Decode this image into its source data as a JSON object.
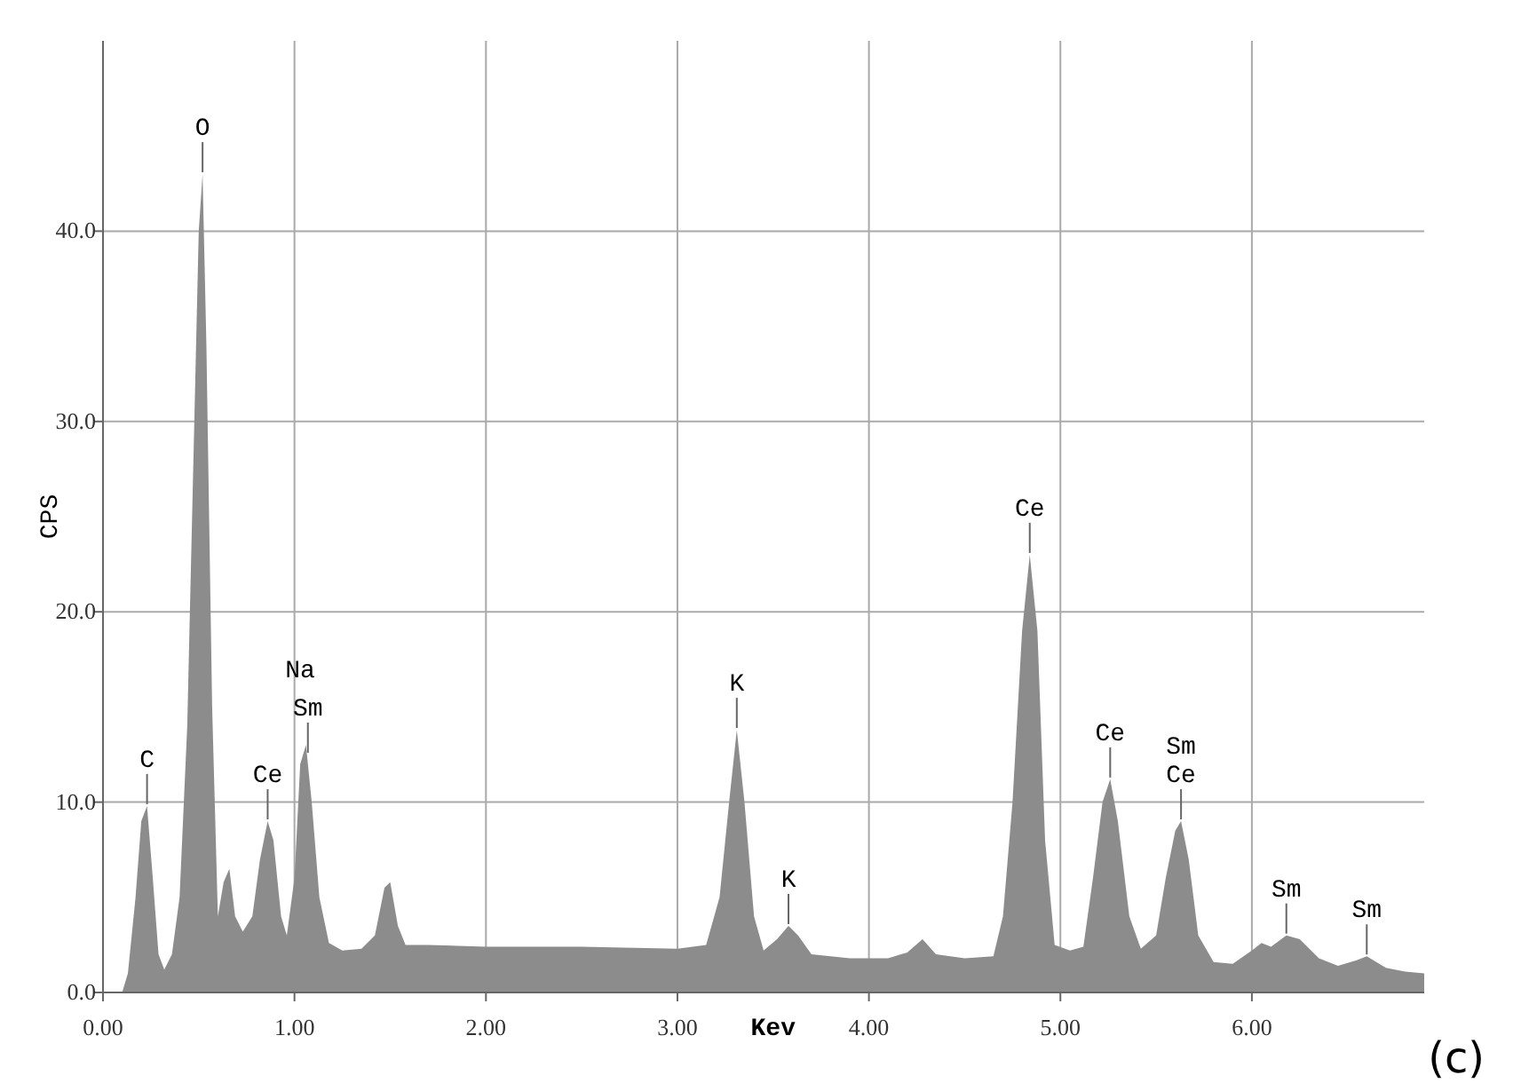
{
  "chart_data": {
    "type": "area",
    "xlabel": "Kev",
    "ylabel": "CPS",
    "color": "#8c8c8c",
    "grid": true,
    "xlim": [
      0,
      6.9
    ],
    "ylim": [
      0,
      50
    ],
    "xticks": [
      {
        "value": 0,
        "label": "0.00"
      },
      {
        "value": 1,
        "label": "1.00"
      },
      {
        "value": 2,
        "label": "2.00"
      },
      {
        "value": 3,
        "label": "3.00"
      },
      {
        "value": 4,
        "label": "4.00"
      },
      {
        "value": 5,
        "label": "5.00"
      },
      {
        "value": 6,
        "label": "6.00"
      }
    ],
    "yticks": [
      {
        "value": 0,
        "label": "0.0"
      },
      {
        "value": 10,
        "label": "10.0"
      },
      {
        "value": 20,
        "label": "20.0"
      },
      {
        "value": 30,
        "label": "30.0"
      },
      {
        "value": 40,
        "label": "40.0"
      }
    ],
    "x": [
      0.1,
      0.13,
      0.17,
      0.2,
      0.23,
      0.26,
      0.29,
      0.32,
      0.36,
      0.4,
      0.44,
      0.47,
      0.5,
      0.52,
      0.54,
      0.57,
      0.6,
      0.63,
      0.66,
      0.69,
      0.73,
      0.78,
      0.82,
      0.86,
      0.89,
      0.93,
      0.96,
      1.0,
      1.03,
      1.06,
      1.09,
      1.13,
      1.18,
      1.25,
      1.35,
      1.42,
      1.47,
      1.5,
      1.54,
      1.58,
      1.7,
      2.0,
      2.5,
      3.0,
      3.15,
      3.22,
      3.27,
      3.31,
      3.35,
      3.4,
      3.45,
      3.52,
      3.58,
      3.63,
      3.7,
      3.9,
      4.1,
      4.2,
      4.28,
      4.35,
      4.5,
      4.65,
      4.7,
      4.75,
      4.8,
      4.84,
      4.88,
      4.92,
      4.97,
      5.05,
      5.12,
      5.17,
      5.22,
      5.26,
      5.3,
      5.36,
      5.42,
      5.5,
      5.55,
      5.6,
      5.63,
      5.67,
      5.72,
      5.8,
      5.9,
      6.0,
      6.05,
      6.1,
      6.18,
      6.25,
      6.35,
      6.45,
      6.55,
      6.6,
      6.7,
      6.8,
      6.9
    ],
    "values": [
      0,
      1,
      5,
      9,
      9.8,
      6,
      2,
      1.2,
      2,
      5,
      14,
      27,
      40,
      43,
      34,
      15,
      4,
      5.8,
      6.5,
      4,
      3.2,
      4,
      7,
      9,
      8,
      4,
      3,
      6,
      12,
      13,
      10,
      5,
      2.6,
      2.2,
      2.3,
      3,
      5.5,
      5.8,
      3.5,
      2.5,
      2.5,
      2.4,
      2.4,
      2.3,
      2.5,
      5,
      10,
      13.8,
      10,
      4,
      2.2,
      2.8,
      3.5,
      3,
      2,
      1.8,
      1.8,
      2.1,
      2.8,
      2,
      1.8,
      1.9,
      4,
      10,
      19,
      23,
      19,
      8,
      2.5,
      2.2,
      2.4,
      6,
      10,
      11.2,
      9,
      4,
      2.3,
      3,
      6,
      8.5,
      9,
      7,
      3,
      1.6,
      1.5,
      2.2,
      2.6,
      2.4,
      3,
      2.8,
      1.8,
      1.4,
      1.7,
      1.9,
      1.3,
      1.1,
      1.0
    ],
    "annotations": [
      {
        "text": "C",
        "x": 0.23,
        "y": 9.8
      },
      {
        "text": "O",
        "x": 0.52,
        "y": 43
      },
      {
        "text": "Ce",
        "x": 0.86,
        "y": 9
      },
      {
        "text": "Sm",
        "x": 1.07,
        "y": 12.5
      },
      {
        "text": "Na",
        "x": 1.03,
        "y": 13
      },
      {
        "text": "K",
        "x": 3.31,
        "y": 13.8
      },
      {
        "text": "K",
        "x": 3.58,
        "y": 3.5
      },
      {
        "text": "Ce",
        "x": 4.84,
        "y": 23
      },
      {
        "text": "Ce",
        "x": 5.26,
        "y": 11.2
      },
      {
        "text": "Ce",
        "x": 5.63,
        "y": 9
      },
      {
        "text": "Sm",
        "x": 5.63,
        "y": 9
      },
      {
        "text": "Sm",
        "x": 6.18,
        "y": 3
      },
      {
        "text": "Sm",
        "x": 6.6,
        "y": 1.9
      },
      "(c)"
    ]
  }
}
